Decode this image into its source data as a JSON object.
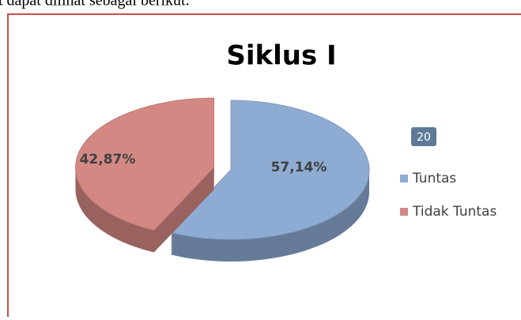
{
  "document_text": "t dapat dilihat sebagai berikut.",
  "page_badge": "20",
  "chart_data": {
    "type": "pie",
    "title": "Siklus I",
    "categories": [
      "Tuntas",
      "Tidak Tuntas"
    ],
    "values": [
      57.14,
      42.87
    ],
    "value_labels": [
      "57,14%",
      "42,87%"
    ],
    "colors": [
      "#8eabd3",
      "#d48884"
    ],
    "legend": "right"
  }
}
